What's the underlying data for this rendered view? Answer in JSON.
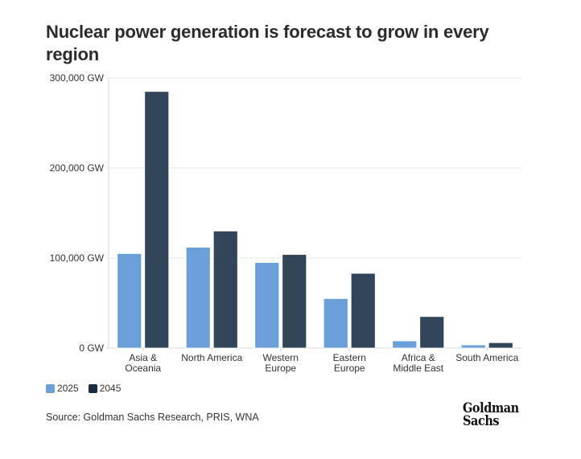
{
  "title": "Nuclear power generation is forecast to grow in every region",
  "source": "Source: Goldman Sachs Research, PRIS, WNA",
  "logo": {
    "line1": "Goldman",
    "line2": "Sachs"
  },
  "colors": {
    "2025": "#6a9fd8",
    "2045": "#334559",
    "grid": "#e6e6e6",
    "axis": "#d8d8d8"
  },
  "chart_data": {
    "type": "bar",
    "title": "Nuclear power generation is forecast to grow in every region",
    "xlabel": "",
    "ylabel": "",
    "ylim": [
      0,
      300000
    ],
    "yticks": [
      0,
      100000,
      200000,
      300000
    ],
    "ytick_labels": [
      "0 GW",
      "100,000 GW",
      "200,000 GW",
      "300,000 GW"
    ],
    "grid": true,
    "legend_position": "bottom-left",
    "categories": [
      [
        "Asia &",
        "Oceania"
      ],
      [
        "North America"
      ],
      [
        "Western",
        "Europe"
      ],
      [
        "Eastern",
        "Europe"
      ],
      [
        "Africa &",
        "Middle East"
      ],
      [
        "South America"
      ]
    ],
    "series": [
      {
        "name": "2025",
        "values": [
          105000,
          112000,
          95000,
          55000,
          8000,
          3500
        ]
      },
      {
        "name": "2045",
        "values": [
          285000,
          130000,
          104000,
          83000,
          35000,
          6000
        ]
      }
    ]
  }
}
